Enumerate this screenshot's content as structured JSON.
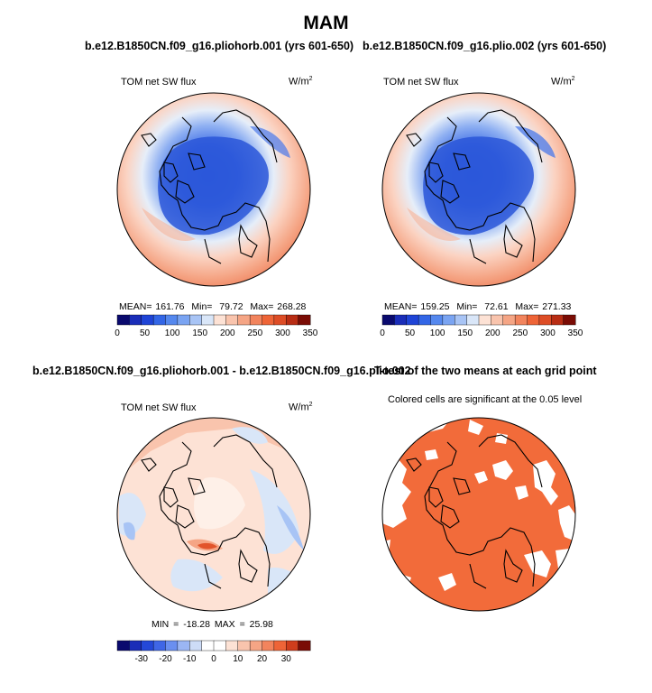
{
  "header": {
    "title": "MAM"
  },
  "colors": {
    "abs_levels": [
      "#0a0a6e",
      "#1a2db8",
      "#1f44d6",
      "#3366e6",
      "#5588ee",
      "#7aa4f2",
      "#a8c4f5",
      "#d9e6f8",
      "#fde2d5",
      "#f9c4ad",
      "#f5a585",
      "#f2845d",
      "#ee6437",
      "#dd4d26",
      "#b82d14",
      "#7a0c05"
    ],
    "diff_levels": [
      "#0a0a6e",
      "#1a2db8",
      "#2448d8",
      "#3f66e6",
      "#6a8ff0",
      "#9bb6f4",
      "#cddcf7",
      "#ffffff",
      "#ffffff",
      "#fde2d5",
      "#f9c4ad",
      "#f5a585",
      "#f2845d",
      "#ee6437",
      "#cf3d1c",
      "#7a0c05"
    ],
    "signif": "#f26b3a",
    "coast": "#000000"
  },
  "panels": {
    "top_left": {
      "title": "b.e12.B1850CN.f09_g16.pliohorb.001 (yrs 601-650)",
      "variable": "TOM net SW flux",
      "units_base": "W/m",
      "units_exp": "2",
      "mean_label": "MEAN=",
      "mean": "161.76",
      "min_label": "Min=",
      "min": "79.72",
      "max_label": "Max=",
      "max": "268.28"
    },
    "top_right": {
      "title": "b.e12.B1850CN.f09_g16.plio.002 (yrs 601-650)",
      "variable": "TOM net SW flux",
      "units_base": "W/m",
      "units_exp": "2",
      "mean_label": "MEAN=",
      "mean": "159.25",
      "min_label": "Min=",
      "min": "72.61",
      "max_label": "Max=",
      "max": "271.33"
    },
    "bottom_left": {
      "title": "b.e12.B1850CN.f09_g16.pliohorb.001 - b.e12.B1850CN.f09_g16.plio.002",
      "variable": "TOM net SW flux",
      "units_base": "W/m",
      "units_exp": "2",
      "stats": "MIN = -18.28  MAX = 25.98"
    },
    "bottom_right": {
      "title": "T-test of the two means at each grid point",
      "subtitle": "Colored cells are significant at the 0.05 level"
    }
  },
  "chart_data": [
    {
      "type": "heatmap",
      "title": "b.e12.B1850CN.f09_g16.pliohorb.001 (yrs 601-650)",
      "variable": "TOM net SW flux (W/m2)",
      "projection": "north polar stereographic",
      "stats": {
        "mean": 161.76,
        "min": 79.72,
        "max": 268.28
      },
      "colorbar_ticks": [
        0,
        50,
        100,
        150,
        200,
        250,
        300,
        350
      ],
      "colorbar_range": [
        0,
        350
      ]
    },
    {
      "type": "heatmap",
      "title": "b.e12.B1850CN.f09_g16.plio.002 (yrs 601-650)",
      "variable": "TOM net SW flux (W/m2)",
      "projection": "north polar stereographic",
      "stats": {
        "mean": 159.25,
        "min": 72.61,
        "max": 271.33
      },
      "colorbar_ticks": [
        0,
        50,
        100,
        150,
        200,
        250,
        300,
        350
      ],
      "colorbar_range": [
        0,
        350
      ]
    },
    {
      "type": "heatmap",
      "title": "b.e12.B1850CN.f09_g16.pliohorb.001 - b.e12.B1850CN.f09_g16.plio.002",
      "variable": "TOM net SW flux (W/m2)",
      "projection": "north polar stereographic",
      "stats": {
        "min": -18.28,
        "max": 25.98
      },
      "colorbar_ticks": [
        -30,
        -20,
        -10,
        0,
        10,
        20,
        30
      ],
      "colorbar_range": [
        -40,
        40
      ]
    },
    {
      "type": "heatmap",
      "title": "T-test of the two means at each grid point",
      "subtitle": "Colored cells are significant at the 0.05 level",
      "projection": "north polar stereographic",
      "significance_level": 0.05
    }
  ]
}
